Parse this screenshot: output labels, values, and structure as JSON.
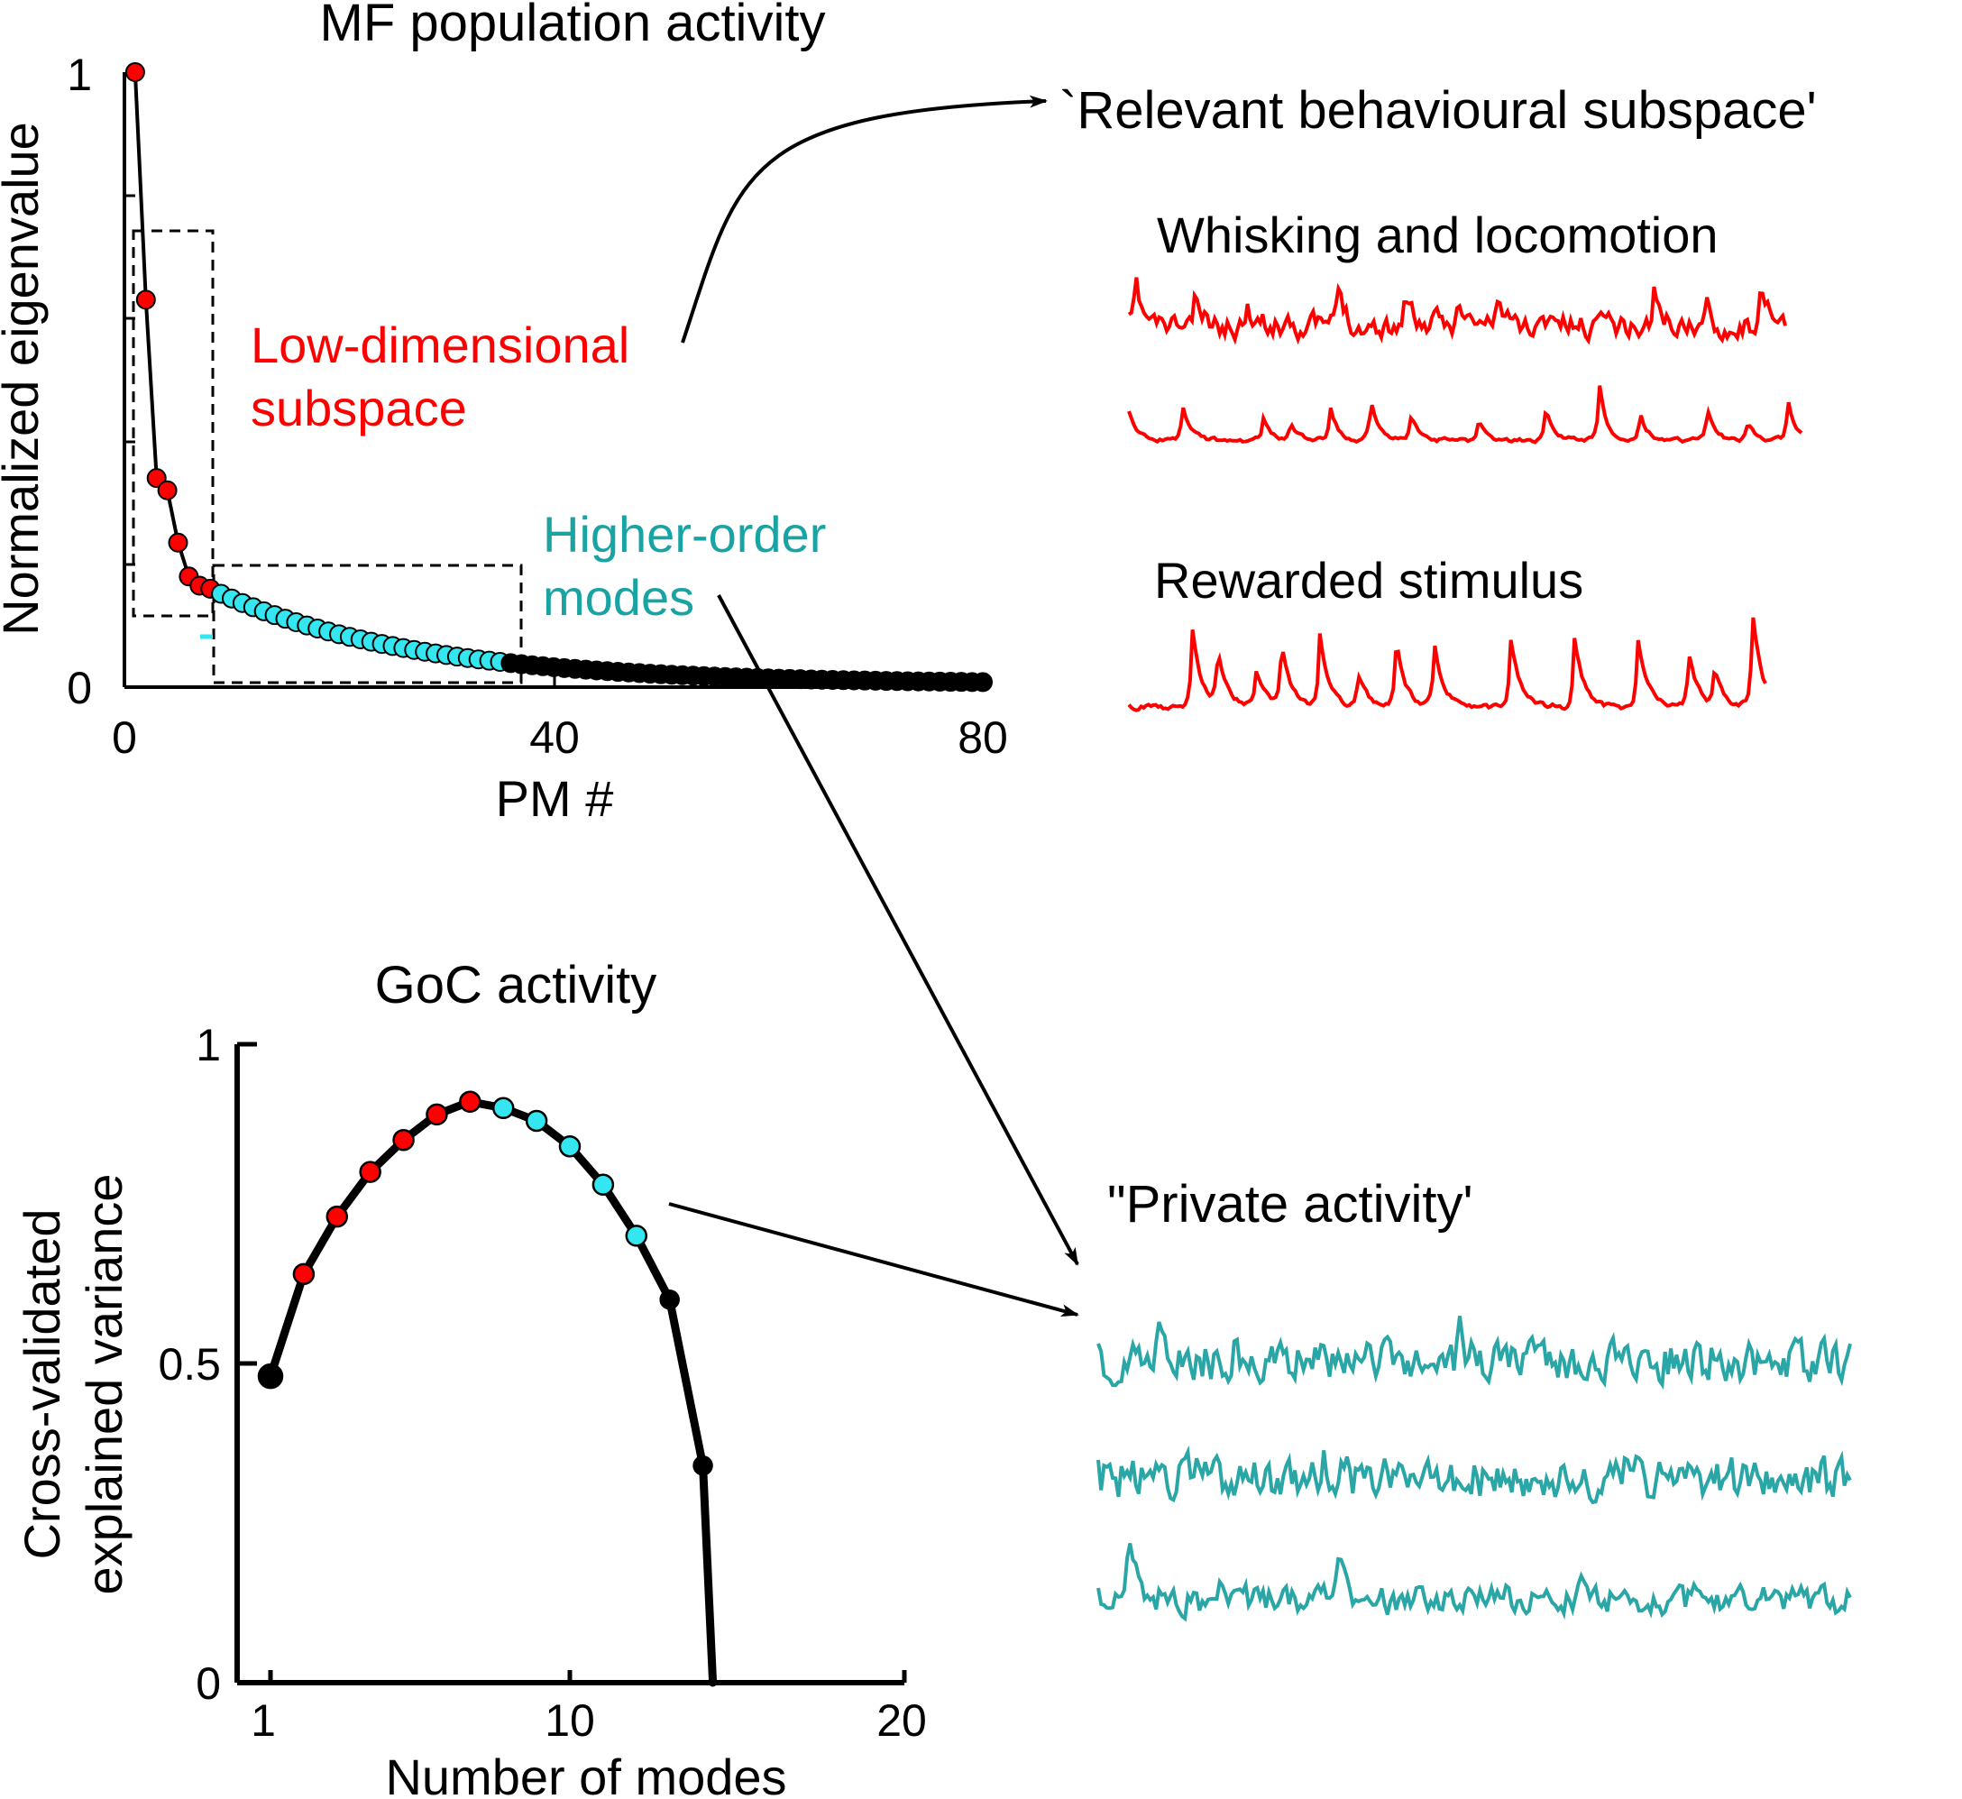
{
  "colors": {
    "red": "#ff0000",
    "cyan": "#33e6f0",
    "teal": "#2aa6a6",
    "black": "#000000"
  },
  "chart_data": [
    {
      "type": "scatter",
      "title": "MF population activity",
      "xlabel": "PM #",
      "ylabel": "Normalized eigenvalue",
      "xlim": [
        0,
        80
      ],
      "ylim": [
        0,
        1
      ],
      "x_ticks": [
        "0",
        "40",
        "80"
      ],
      "y_ticks": [
        "0",
        "1"
      ],
      "series": [
        {
          "color": "red",
          "x": [
            1,
            2,
            3,
            4,
            5,
            6,
            7,
            8
          ],
          "y": [
            1.0,
            0.63,
            0.34,
            0.32,
            0.235,
            0.18,
            0.165,
            0.16
          ]
        },
        {
          "color": "cyan",
          "x_start": 9,
          "x_end": 35
        },
        {
          "color": "black",
          "x_start": 36,
          "x_end": 80
        }
      ],
      "annotations": [
        {
          "text": [
            "Low-dimensional",
            "subspace"
          ],
          "color": "red"
        },
        {
          "text": [
            "Higher-order",
            "modes"
          ],
          "color": "teal"
        }
      ]
    },
    {
      "type": "line",
      "title": "GoC activity",
      "xlabel": "Number of modes",
      "ylabel": [
        "Cross-validated",
        "explained variance"
      ],
      "xlim": [
        0,
        20
      ],
      "ylim": [
        0,
        1
      ],
      "x_ticks": [
        "1",
        "10",
        "20"
      ],
      "y_ticks": [
        "0",
        "0.5",
        "1"
      ],
      "x": [
        1,
        2,
        3,
        4,
        5,
        6,
        7,
        8,
        9,
        10,
        11,
        12,
        13,
        14,
        14.3
      ],
      "y": [
        0.48,
        0.64,
        0.73,
        0.8,
        0.85,
        0.89,
        0.91,
        0.9,
        0.88,
        0.84,
        0.78,
        0.7,
        0.6,
        0.34,
        0.0
      ],
      "point_colors": [
        "black",
        "red",
        "red",
        "red",
        "red",
        "red",
        "red",
        "cyan",
        "cyan",
        "cyan",
        "cyan",
        "cyan",
        "black",
        "black",
        ""
      ]
    }
  ],
  "right_panel": {
    "behav_title": "`Relevant behavioural subspace'",
    "whisk_label": "Whisking and locomotion",
    "reward_label": "Rewarded stimulus",
    "private_title": "\"Private activity'"
  }
}
